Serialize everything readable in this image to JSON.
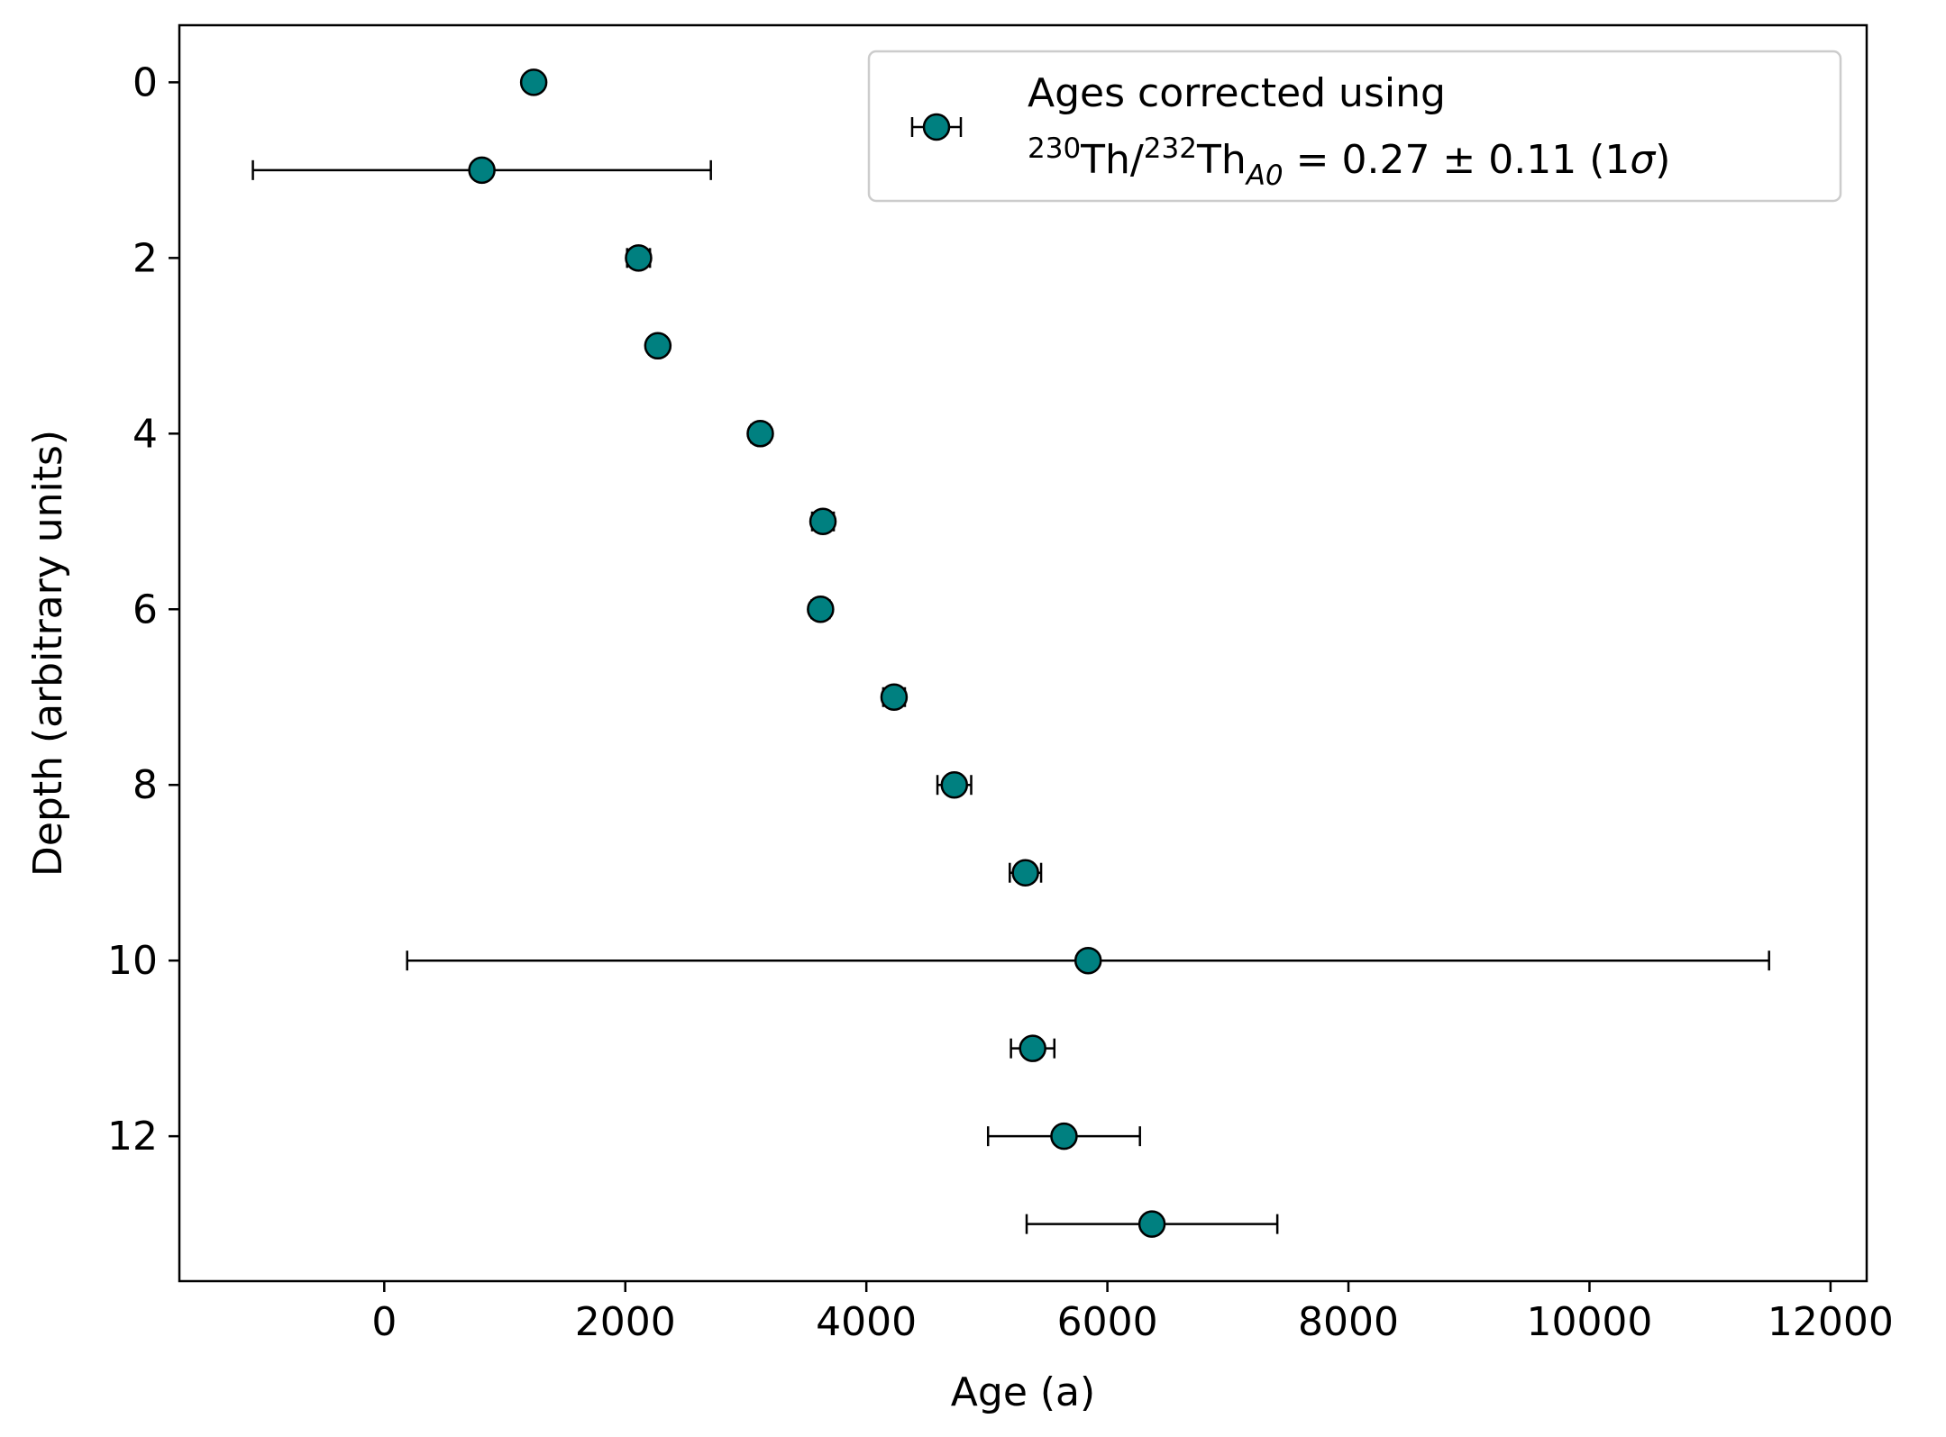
{
  "chart_data": {
    "type": "scatter",
    "title": "",
    "xlabel": "Age (a)",
    "ylabel": "Depth (arbitrary units)",
    "xlim": [
      -1700,
      12300
    ],
    "ylim": [
      13.65,
      -0.65
    ],
    "y_inverted": true,
    "grid": false,
    "legend_position": "top-right",
    "x_ticks": [
      {
        "value": 0,
        "label": "0"
      },
      {
        "value": 2000,
        "label": "2000"
      },
      {
        "value": 4000,
        "label": "4000"
      },
      {
        "value": 6000,
        "label": "6000"
      },
      {
        "value": 8000,
        "label": "8000"
      },
      {
        "value": 10000,
        "label": "10000"
      },
      {
        "value": 12000,
        "label": "12000"
      }
    ],
    "y_ticks": [
      {
        "value": 0,
        "label": "0"
      },
      {
        "value": 2,
        "label": "2"
      },
      {
        "value": 4,
        "label": "4"
      },
      {
        "value": 6,
        "label": "6"
      },
      {
        "value": 8,
        "label": "8"
      },
      {
        "value": 10,
        "label": "10"
      },
      {
        "value": 12,
        "label": "12"
      }
    ],
    "marker_color": "#008080",
    "marker_edge_color": "#000000",
    "errorbar_color": "#000000",
    "legend": {
      "line1": "Ages corrected using",
      "line2_parts": [
        {
          "text": "230",
          "style": "sup"
        },
        {
          "text": "Th/",
          "style": "normal"
        },
        {
          "text": "232",
          "style": "sup"
        },
        {
          "text": "Th",
          "style": "normal"
        },
        {
          "text": "A0",
          "style": "sub-italic"
        },
        {
          "text": " = 0.27 ± 0.11 (1",
          "style": "normal"
        },
        {
          "text": "σ",
          "style": "italic"
        },
        {
          "text": ")",
          "style": "normal"
        }
      ]
    },
    "series": [
      {
        "points": [
          {
            "x": 1240,
            "y": 0,
            "xerr": 60
          },
          {
            "x": 810,
            "y": 1,
            "xerr": 1900
          },
          {
            "x": 2110,
            "y": 2,
            "xerr": 95
          },
          {
            "x": 2270,
            "y": 3,
            "xerr": 60
          },
          {
            "x": 3120,
            "y": 4,
            "xerr": 75
          },
          {
            "x": 3640,
            "y": 5,
            "xerr": 90
          },
          {
            "x": 3620,
            "y": 6,
            "xerr": 75
          },
          {
            "x": 4230,
            "y": 7,
            "xerr": 90
          },
          {
            "x": 4730,
            "y": 8,
            "xerr": 140
          },
          {
            "x": 5320,
            "y": 9,
            "xerr": 130
          },
          {
            "x": 5840,
            "y": 10,
            "xerr": 5650
          },
          {
            "x": 5380,
            "y": 11,
            "xerr": 180
          },
          {
            "x": 5640,
            "y": 12,
            "xerr": 630
          },
          {
            "x": 6370,
            "y": 13,
            "xerr": 1040
          }
        ]
      }
    ]
  }
}
